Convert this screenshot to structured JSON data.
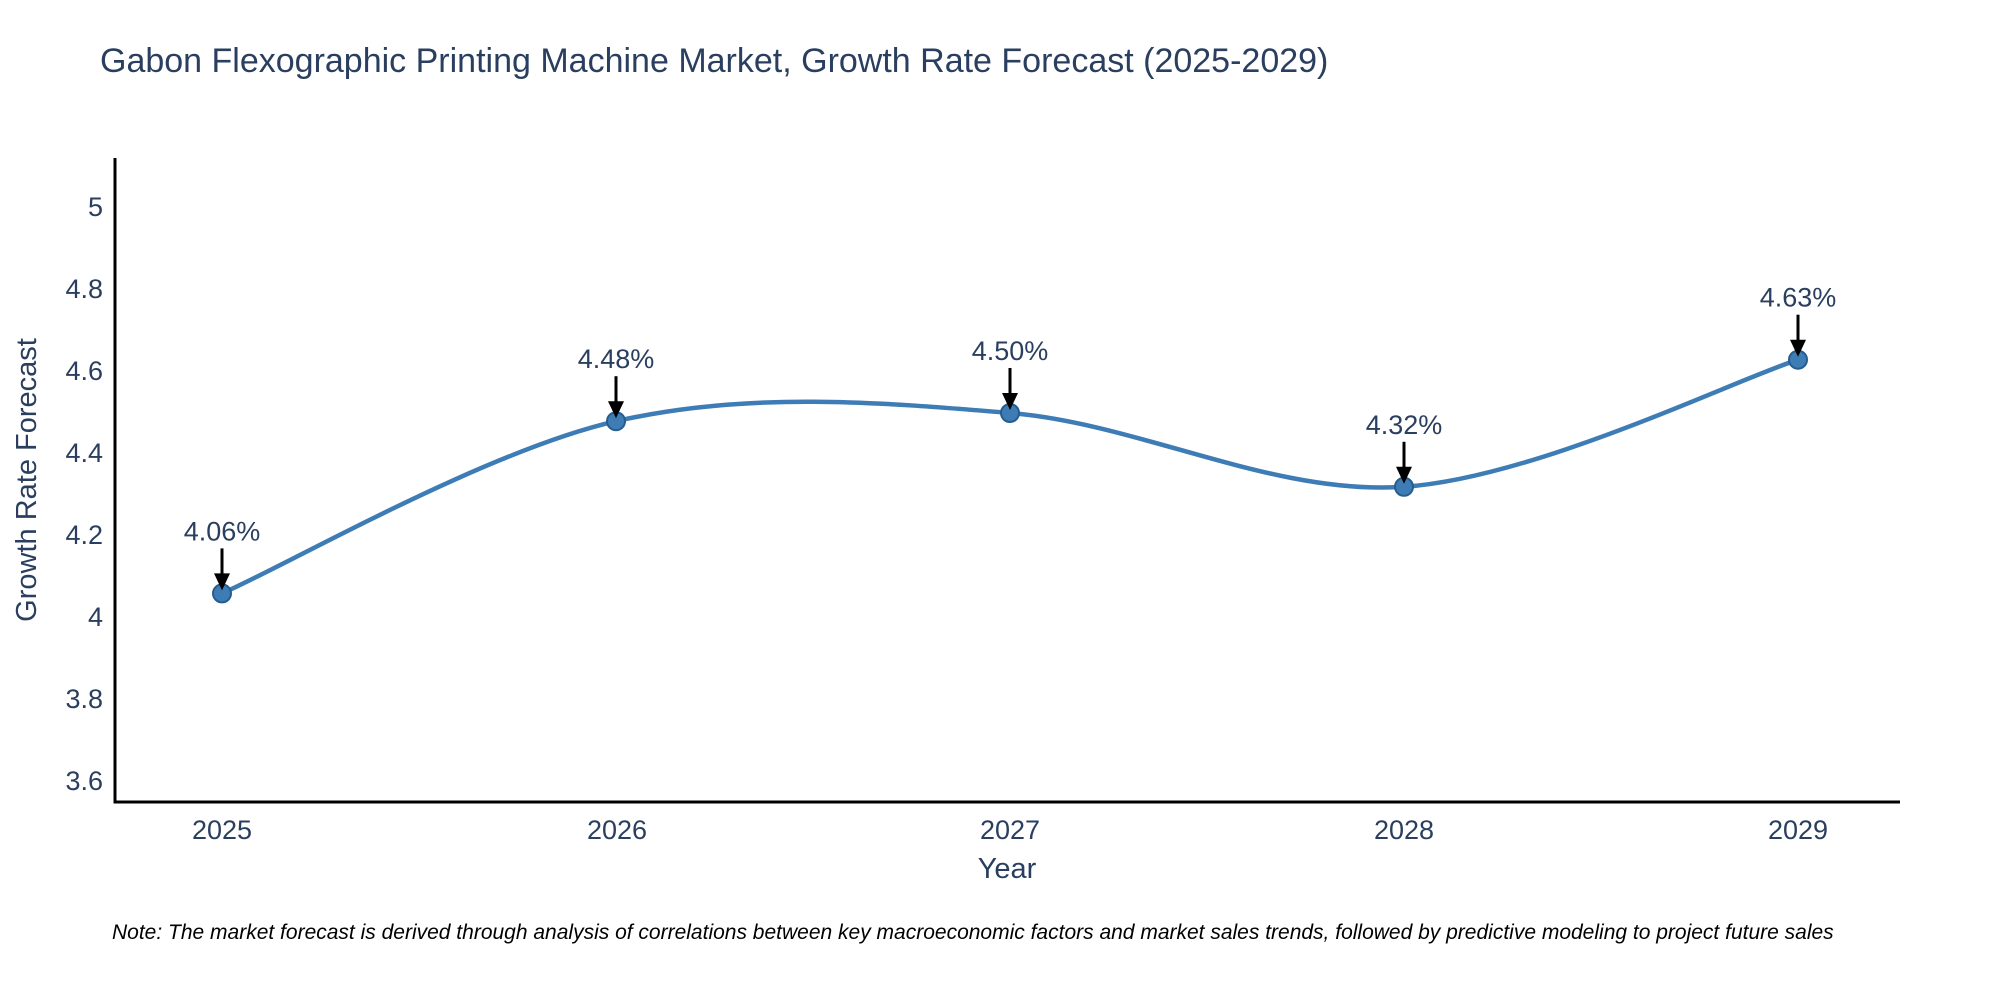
{
  "chart_data": {
    "type": "line",
    "title": "Gabon Flexographic Printing Machine Market, Growth Rate Forecast (2025-2029)",
    "xlabel": "Year",
    "ylabel": "Growth Rate Forecast",
    "categories": [
      "2025",
      "2026",
      "2027",
      "2028",
      "2029"
    ],
    "series": [
      {
        "name": "Growth Rate Forecast",
        "values": [
          4.06,
          4.48,
          4.5,
          4.32,
          4.63
        ],
        "point_labels": [
          "4.06%",
          "4.48%",
          "4.50%",
          "4.32%",
          "4.63%"
        ]
      }
    ],
    "line_style": "spline",
    "markers": true,
    "grid": false,
    "legend": "none",
    "ylim": [
      3.55,
      5.12
    ],
    "ytick_labels_top_to_bottom": [
      "5",
      "4.8",
      "4.6",
      "4.4",
      "4.2",
      "4",
      "3.8",
      "3.6"
    ],
    "colors": {
      "line": "#3e7cb6",
      "marker_fill": "#3e7cb6",
      "marker_edge": "#265d8d",
      "annotation_arrow": "#000000",
      "text": "#2a3f5f",
      "axis_spine": "#000000"
    },
    "note": "Note: The market forecast is derived through analysis of correlations between key macroeconomic factors and market sales trends, followed by predictive modeling to project future sales"
  }
}
